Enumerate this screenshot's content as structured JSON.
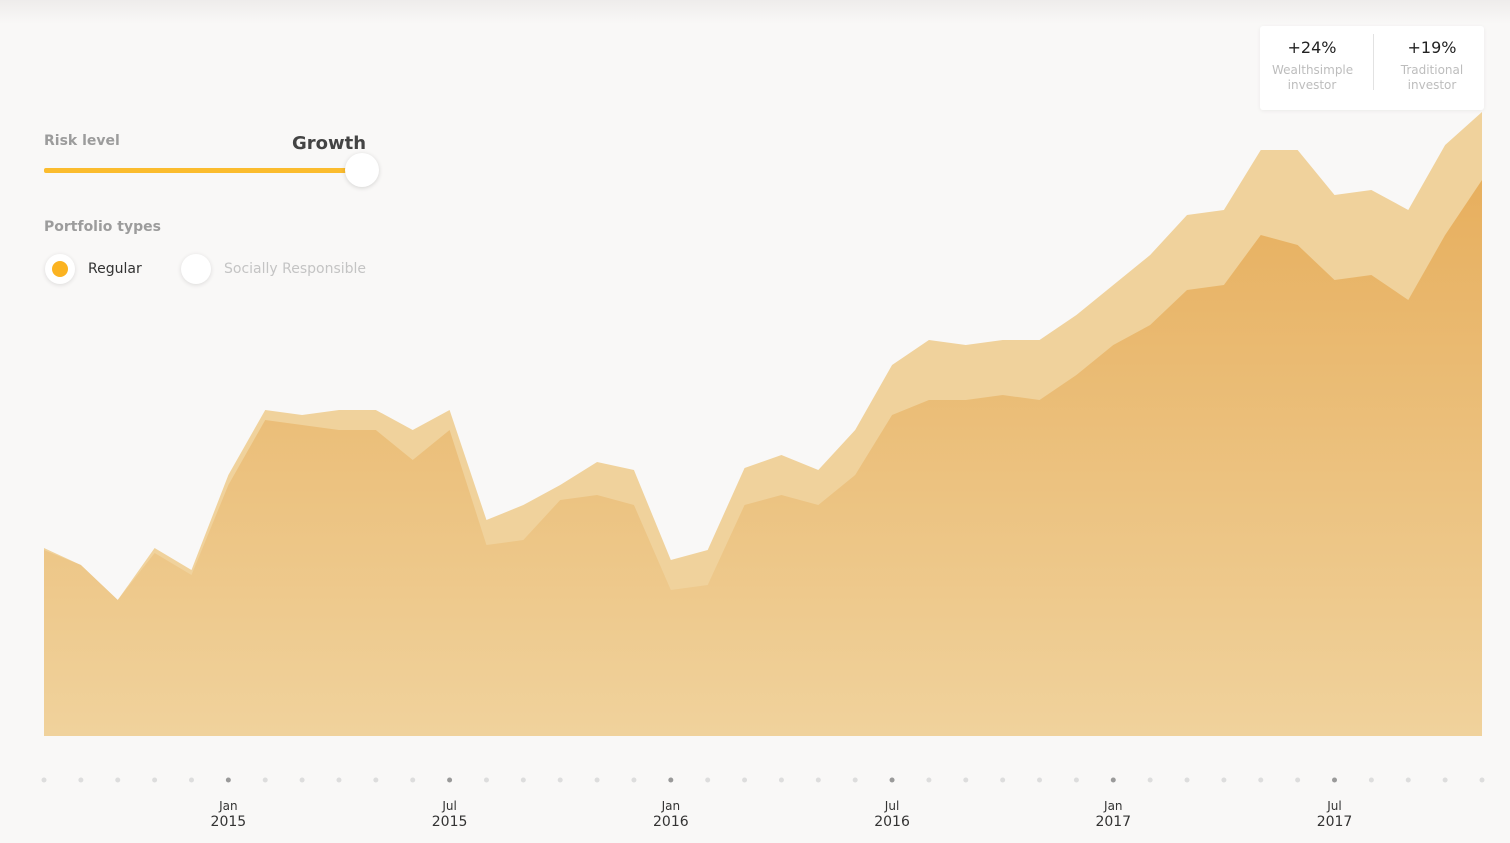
{
  "controls": {
    "risk_label": "Risk level",
    "risk_value": "Growth",
    "portfolio_label": "Portfolio types",
    "options": [
      "Regular",
      "Socially Responsible"
    ]
  },
  "stats": [
    "+24%",
    "+19%"
  ],
  "chart_data": {
    "type": "area",
    "categories": [
      null,
      null,
      null,
      null,
      null,
      "Jan 2015",
      null,
      null,
      null,
      null,
      null,
      "Jul 2015",
      null,
      null,
      null,
      null,
      null,
      "Jan 2016",
      null,
      null,
      null,
      null,
      null,
      "Jul 2016",
      null,
      null,
      null,
      null,
      null,
      "Jan 2017",
      null,
      null,
      null,
      null,
      null,
      "Jul 2017",
      null,
      null,
      null,
      null
    ],
    "ylim": [
      0,
      700
    ],
    "series": [
      {
        "name": "Wealthsimple investor",
        "color": "#f0d29c",
        "values": [
          188,
          171,
          136,
          188,
          166,
          261,
          326,
          321,
          326,
          326,
          306,
          326,
          216,
          231,
          251,
          274,
          266,
          176,
          186,
          268,
          281,
          266,
          306,
          371,
          396,
          391,
          396,
          396,
          421,
          451,
          481,
          521,
          526,
          586,
          586,
          541,
          546,
          526,
          591,
          624
        ]
      },
      {
        "name": "Traditional investor",
        "color": "#e7af5e",
        "values": [
          186,
          171,
          136,
          183,
          161,
          251,
          316,
          311,
          306,
          306,
          276,
          306,
          191,
          196,
          236,
          241,
          231,
          146,
          151,
          231,
          241,
          231,
          261,
          321,
          336,
          336,
          341,
          336,
          361,
          391,
          411,
          446,
          451,
          501,
          491,
          456,
          461,
          436,
          501,
          556
        ]
      }
    ]
  }
}
